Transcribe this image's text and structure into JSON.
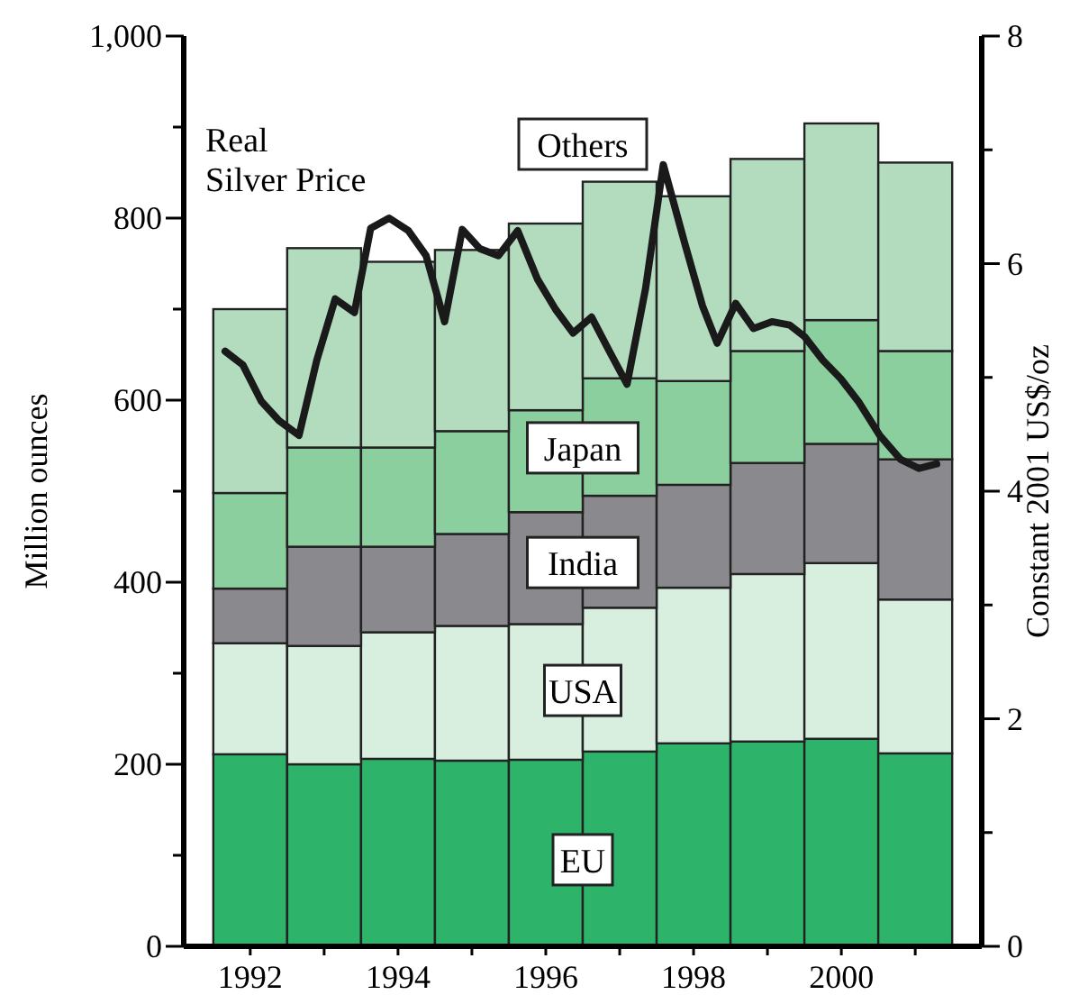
{
  "chart_data": {
    "type": "bar",
    "stacked": true,
    "legend": false,
    "grid": false,
    "ylabel": "Million ounces",
    "y2label": "Constant 2001 US$/oz",
    "x": [
      1992,
      1993,
      1994,
      1995,
      1996,
      1997,
      1998,
      1999,
      2000,
      2001
    ],
    "xlim": [
      1991.1,
      2001.9
    ],
    "xticks": [
      1992,
      {
        "value": 1993,
        "label": null
      },
      1994,
      {
        "value": 1995,
        "label": null
      },
      1996,
      {
        "value": 1997,
        "label": null
      },
      1998,
      {
        "value": 1999,
        "label": null
      },
      2000,
      {
        "value": 2001,
        "label": null
      }
    ],
    "ylim": [
      0,
      1000
    ],
    "yticks": [
      0,
      {
        "value": 100,
        "label": null
      },
      200,
      {
        "value": 300,
        "label": null
      },
      400,
      {
        "value": 500,
        "label": null
      },
      600,
      {
        "value": 700,
        "label": null
      },
      800,
      {
        "value": 900,
        "label": null
      },
      {
        "value": 1000,
        "label": "1,000"
      }
    ],
    "y2lim": [
      0,
      8
    ],
    "y2ticks": [
      0,
      {
        "value": 1,
        "label": null
      },
      2,
      {
        "value": 3,
        "label": null
      },
      4,
      {
        "value": 5,
        "label": null
      },
      6,
      {
        "value": 7,
        "label": null
      },
      8
    ],
    "series": [
      {
        "name": "EU",
        "color": "#2eb46a",
        "values": [
          211,
          200,
          206,
          204,
          205,
          214,
          223,
          225,
          228,
          212
        ]
      },
      {
        "name": "USA",
        "color": "#d8eedf",
        "values": [
          122,
          130,
          139,
          148,
          149,
          158,
          171,
          184,
          193,
          169
        ]
      },
      {
        "name": "India",
        "color": "#8a8a8e",
        "values": [
          60,
          109,
          94,
          101,
          123,
          123,
          113,
          122,
          131,
          154
        ]
      },
      {
        "name": "Japan",
        "color": "#8ccf9f",
        "values": [
          105,
          109,
          109,
          113,
          112,
          129,
          114,
          123,
          136,
          119
        ]
      },
      {
        "name": "Others",
        "color": "#b3dcbe",
        "values": [
          202,
          219,
          204,
          199,
          205,
          216,
          203,
          211,
          216,
          207
        ]
      },
      {
        "name": "Real Silver Price",
        "type": "line",
        "axis": "y2",
        "color": "#1a1a1a",
        "line_style": "solid",
        "marker": "none",
        "x": [
          1991.66,
          1991.9,
          1992.15,
          1992.39,
          1992.66,
          1992.9,
          1993.15,
          1993.41,
          1993.63,
          1993.88,
          1994.14,
          1994.38,
          1994.63,
          1994.87,
          1995.11,
          1995.36,
          1995.62,
          1995.89,
          1996.13,
          1996.37,
          1996.62,
          1996.86,
          1997.1,
          1997.35,
          1997.59,
          1997.88,
          1998.12,
          1998.32,
          1998.57,
          1998.81,
          1999.06,
          1999.3,
          1999.5,
          1999.75,
          1999.99,
          2000.24,
          2000.52,
          2000.8,
          2001.05,
          2001.29
        ],
        "values": [
          5.23,
          5.11,
          4.79,
          4.62,
          4.49,
          5.15,
          5.69,
          5.57,
          6.31,
          6.4,
          6.29,
          6.07,
          5.49,
          6.3,
          6.13,
          6.07,
          6.29,
          5.86,
          5.6,
          5.39,
          5.53,
          5.23,
          4.94,
          5.78,
          6.87,
          6.18,
          5.63,
          5.3,
          5.65,
          5.43,
          5.49,
          5.46,
          5.36,
          5.15,
          4.99,
          4.78,
          4.49,
          4.28,
          4.2,
          4.24
        ]
      }
    ]
  }
}
